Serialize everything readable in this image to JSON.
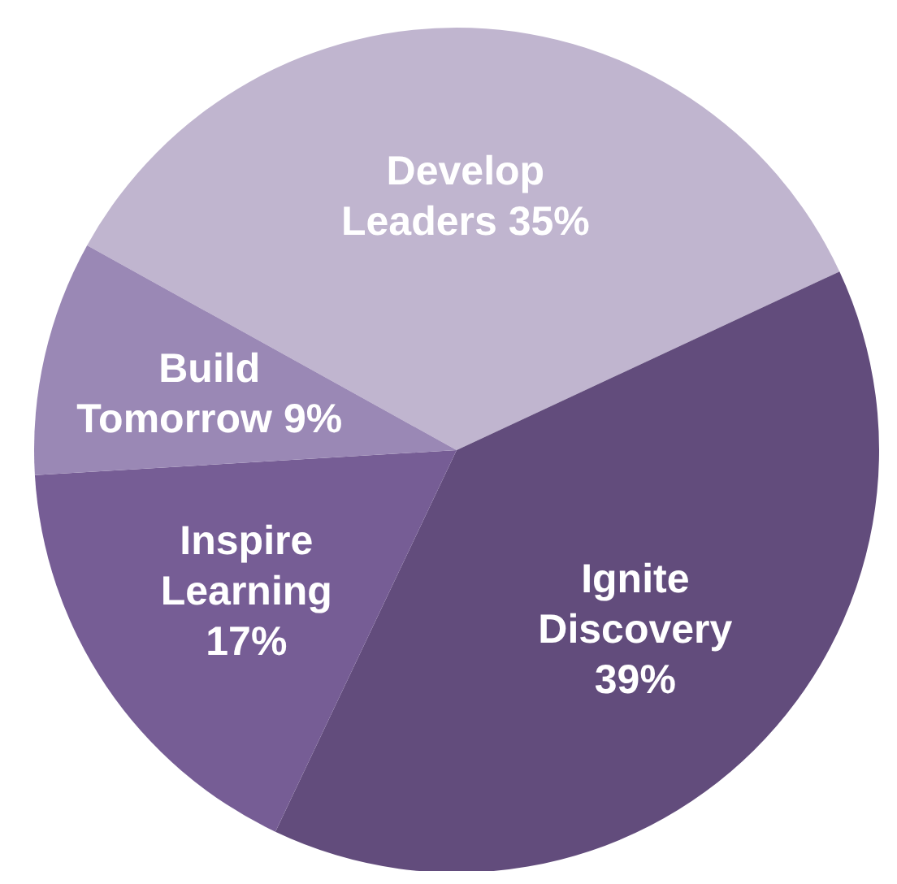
{
  "chart_data": {
    "type": "pie",
    "categories": [
      "Develop Leaders",
      "Ignite Discovery",
      "Inspire Learning",
      "Build Tomorrow"
    ],
    "values": [
      35,
      39,
      17,
      9
    ],
    "colors": [
      "#c0b5cf",
      "#624c7c",
      "#765d95",
      "#9a88b5"
    ],
    "value_labels": [
      "35%",
      "39%",
      "17%",
      "9%"
    ]
  }
}
